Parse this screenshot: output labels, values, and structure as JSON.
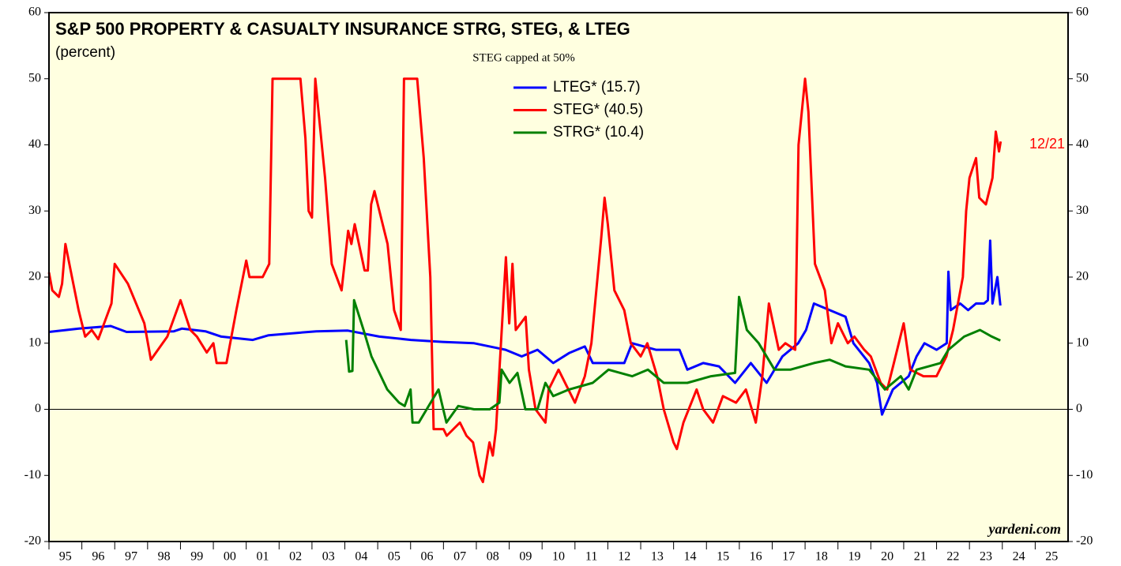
{
  "chart_data": {
    "type": "line",
    "title": "S&P 500 PROPERTY & CASUALTY INSURANCE STRG, STEG, & LTEG",
    "subtitle": "(percent)",
    "annotations": [
      "STEG capped at 50%",
      "12/21",
      "yardeni.com"
    ],
    "xlim": [
      1995,
      2026
    ],
    "xticks": [
      {
        "value": 1995,
        "label": "95"
      },
      {
        "value": 1996,
        "label": "96"
      },
      {
        "value": 1997,
        "label": "97"
      },
      {
        "value": 1998,
        "label": "98"
      },
      {
        "value": 1999,
        "label": "99"
      },
      {
        "value": 2000,
        "label": "00"
      },
      {
        "value": 2001,
        "label": "01"
      },
      {
        "value": 2002,
        "label": "02"
      },
      {
        "value": 2003,
        "label": "03"
      },
      {
        "value": 2004,
        "label": "04"
      },
      {
        "value": 2005,
        "label": "05"
      },
      {
        "value": 2006,
        "label": "06"
      },
      {
        "value": 2007,
        "label": "07"
      },
      {
        "value": 2008,
        "label": "08"
      },
      {
        "value": 2009,
        "label": "09"
      },
      {
        "value": 2010,
        "label": "10"
      },
      {
        "value": 2011,
        "label": "11"
      },
      {
        "value": 2012,
        "label": "12"
      },
      {
        "value": 2013,
        "label": "13"
      },
      {
        "value": 2014,
        "label": "14"
      },
      {
        "value": 2015,
        "label": "15"
      },
      {
        "value": 2016,
        "label": "16"
      },
      {
        "value": 2017,
        "label": "17"
      },
      {
        "value": 2018,
        "label": "18"
      },
      {
        "value": 2019,
        "label": "19"
      },
      {
        "value": 2020,
        "label": "20"
      },
      {
        "value": 2021,
        "label": "21"
      },
      {
        "value": 2022,
        "label": "22"
      },
      {
        "value": 2023,
        "label": "23"
      },
      {
        "value": 2024,
        "label": "24"
      },
      {
        "value": 2025,
        "label": "25"
      }
    ],
    "ylim": [
      -20,
      60
    ],
    "yticks": [
      -20,
      -10,
      0,
      10,
      20,
      30,
      40,
      50,
      60
    ],
    "y2lim": [
      -20,
      60
    ],
    "y2ticks": [
      -20,
      -10,
      0,
      10,
      20,
      30,
      40,
      50,
      60
    ],
    "background": "#ffffe0",
    "series": [
      {
        "name": "LTEG* (15.7)",
        "color": "#0000ff",
        "x": [
          1995.0,
          1995.91,
          1996.88,
          1997.36,
          1998.8,
          1999.04,
          1999.76,
          2000.24,
          2001.2,
          2001.68,
          2003.13,
          2004.09,
          2005.05,
          2006.01,
          2006.97,
          2007.93,
          2008.89,
          2009.38,
          2009.86,
          2010.34,
          2010.82,
          2011.3,
          2011.54,
          2012.5,
          2012.74,
          2013.46,
          2014.18,
          2014.42,
          2014.9,
          2015.38,
          2015.87,
          2016.35,
          2016.83,
          2017.31,
          2017.79,
          2018.03,
          2018.27,
          2018.75,
          2019.23,
          2019.47,
          2019.95,
          2020.19,
          2020.34,
          2020.67,
          2021.15,
          2021.39,
          2021.63,
          2022.0,
          2022.31,
          2022.36,
          2022.43,
          2022.72,
          2022.96,
          2023.2,
          2023.44,
          2023.56,
          2023.63,
          2023.7,
          2023.85,
          2023.94
        ],
        "values": [
          11.7,
          12.2,
          12.6,
          11.7,
          11.8,
          12.2,
          11.8,
          11,
          10.5,
          11.2,
          11.8,
          11.9,
          11,
          10.5,
          10.2,
          10,
          9,
          8,
          9,
          7,
          8.5,
          9.5,
          7,
          7,
          10,
          9,
          9,
          6,
          7,
          6.5,
          4,
          7,
          4,
          8,
          10,
          12,
          16,
          15,
          14,
          10,
          7,
          4,
          -0.8,
          3,
          5,
          8,
          10,
          9,
          10,
          20.8,
          15,
          16,
          15,
          16,
          16,
          16.5,
          25.5,
          16,
          20,
          15.7
        ]
      },
      {
        "name": "STEG* (40.5)",
        "color": "#ff0000",
        "x": [
          1995.0,
          1995.1,
          1995.3,
          1995.4,
          1995.5,
          1995.7,
          1995.9,
          1996.1,
          1996.3,
          1996.5,
          1996.9,
          1997.0,
          1997.4,
          1997.9,
          1998.1,
          1998.6,
          1999.0,
          1999.3,
          1999.5,
          1999.8,
          2000.0,
          2000.1,
          2000.4,
          2000.7,
          2001.0,
          2001.1,
          2001.5,
          2001.7,
          2001.8,
          2002.65,
          2002.8,
          2002.9,
          2003.0,
          2003.1,
          2003.4,
          2003.6,
          2003.9,
          2004.1,
          2004.2,
          2004.3,
          2004.6,
          2004.7,
          2004.8,
          2004.9,
          2005.3,
          2005.5,
          2005.7,
          2005.8,
          2006.2,
          2006.4,
          2006.6,
          2006.7,
          2007.0,
          2007.1,
          2007.5,
          2007.7,
          2007.9,
          2008.1,
          2008.2,
          2008.4,
          2008.5,
          2008.6,
          2008.9,
          2009.0,
          2009.1,
          2009.2,
          2009.5,
          2009.6,
          2009.8,
          2010.1,
          2010.2,
          2010.5,
          2010.8,
          2011.0,
          2011.3,
          2011.5,
          2011.8,
          2011.9,
          2012.0,
          2012.2,
          2012.5,
          2012.7,
          2013.0,
          2013.2,
          2013.5,
          2013.7,
          2014.0,
          2014.1,
          2014.3,
          2014.7,
          2014.9,
          2015.2,
          2015.5,
          2015.9,
          2016.2,
          2016.5,
          2016.7,
          2016.9,
          2017.2,
          2017.4,
          2017.7,
          2017.8,
          2018.0,
          2018.1,
          2018.3,
          2018.6,
          2018.8,
          2019.0,
          2019.3,
          2019.5,
          2019.8,
          2020.0,
          2020.3,
          2020.5,
          2020.7,
          2021.0,
          2021.2,
          2021.6,
          2022.0,
          2022.3,
          2022.5,
          2022.8,
          2022.9,
          2023.0,
          2023.2,
          2023.3,
          2023.5,
          2023.7,
          2023.8,
          2023.9,
          2023.95
        ],
        "values": [
          20.7,
          18,
          17,
          19,
          25,
          20,
          15,
          11,
          12,
          10.6,
          16,
          22,
          19,
          13,
          7.5,
          11,
          16.5,
          12,
          11,
          8.6,
          10,
          7,
          7,
          15,
          22.5,
          20,
          20,
          22,
          50,
          50,
          41,
          30,
          29,
          50,
          35,
          22,
          18,
          27,
          25,
          28,
          21,
          21,
          31,
          33,
          25,
          15,
          12,
          50,
          50,
          38,
          20,
          -3,
          -3,
          -4,
          -2,
          -4,
          -5,
          -10,
          -11,
          -5,
          -7,
          -3,
          23,
          13,
          22,
          12,
          14,
          6,
          0,
          -2,
          3,
          6,
          3,
          1,
          5,
          10,
          26,
          32,
          28,
          18,
          15,
          10,
          8,
          10,
          5,
          0,
          -5,
          -6,
          -2,
          3,
          0,
          -2,
          2,
          1,
          3,
          -2,
          5,
          16,
          9,
          10,
          9,
          40,
          50,
          45,
          22,
          18,
          10,
          13,
          10,
          11,
          9,
          8,
          4,
          3,
          7,
          13,
          6,
          5,
          5,
          8,
          12,
          20,
          30,
          35,
          38,
          32,
          31,
          35,
          42,
          39,
          40.5
        ]
      },
      {
        "name": "STRG* (10.4)",
        "color": "#008000",
        "x": [
          2004.04,
          2004.13,
          2004.23,
          2004.28,
          2004.57,
          2004.81,
          2005.29,
          2005.65,
          2005.82,
          2006.0,
          2006.06,
          2006.25,
          2006.49,
          2006.85,
          2007.09,
          2007.45,
          2007.93,
          2008.41,
          2008.7,
          2008.77,
          2009.01,
          2009.25,
          2009.49,
          2009.86,
          2010.1,
          2010.34,
          2010.82,
          2011.54,
          2012.02,
          2012.74,
          2013.22,
          2013.7,
          2014.42,
          2015.14,
          2015.87,
          2015.99,
          2016.23,
          2016.59,
          2017.07,
          2017.55,
          2018.27,
          2018.75,
          2019.23,
          2019.95,
          2020.43,
          2020.91,
          2021.15,
          2021.39,
          2022.12,
          2022.36,
          2022.84,
          2023.32,
          2023.68,
          2023.94
        ],
        "values": [
          10.5,
          5.7,
          5.8,
          16.5,
          12,
          8,
          3,
          1,
          0.5,
          3,
          -2,
          -2,
          0,
          3,
          -2,
          0.5,
          0,
          0,
          1,
          6,
          4,
          5.5,
          0,
          0,
          4,
          2,
          3,
          4,
          6,
          5,
          6,
          4,
          4,
          5,
          5.5,
          17,
          12,
          10,
          6,
          6,
          7,
          7.5,
          6.5,
          6,
          3,
          5,
          3,
          6,
          7,
          9,
          11,
          12,
          11,
          10.4
        ]
      }
    ]
  }
}
